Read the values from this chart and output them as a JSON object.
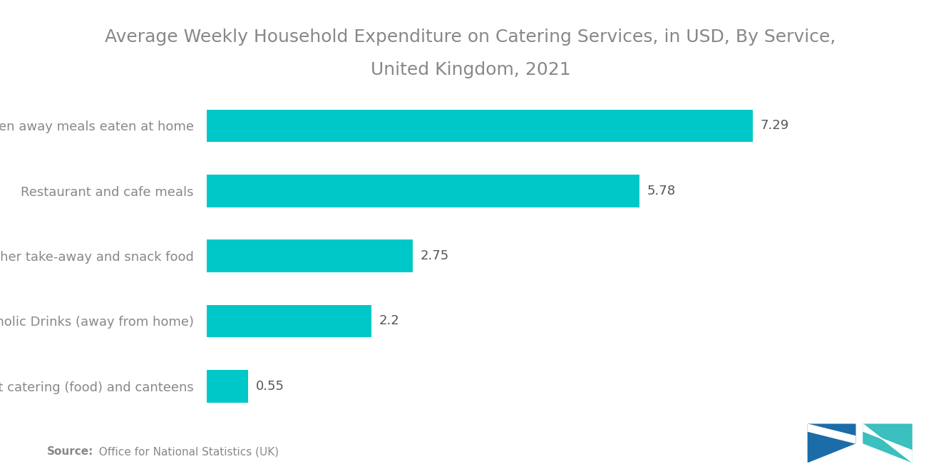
{
  "title_line1": "Average Weekly Household Expenditure on Catering Services, in USD, By Service,",
  "title_line2": "United Kingdom, 2021",
  "categories": [
    "Contract catering (food) and canteens",
    "Alcoholic Drinks (away from home)",
    "Other take-away and snack food",
    "Restaurant and cafe meals",
    "Taken away meals eaten at home"
  ],
  "values": [
    0.55,
    2.2,
    2.75,
    5.78,
    7.29
  ],
  "bar_color": "#00C8C8",
  "label_color": "#888888",
  "value_color": "#555555",
  "title_color": "#888888",
  "background_color": "#ffffff",
  "source_bold": "Source:",
  "source_rest": "  Office for National Statistics (UK)",
  "xlim": [
    0,
    8.8
  ],
  "title_fontsize": 18,
  "label_fontsize": 13,
  "value_fontsize": 13,
  "source_fontsize": 11,
  "logo_color_left": "#1b6ca8",
  "logo_color_right": "#3bbfbf"
}
